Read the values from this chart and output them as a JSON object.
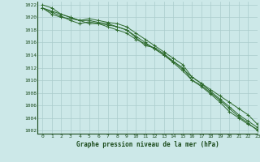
{
  "x": [
    0,
    1,
    2,
    3,
    4,
    5,
    6,
    7,
    8,
    9,
    10,
    11,
    12,
    13,
    14,
    15,
    16,
    17,
    18,
    19,
    20,
    21,
    22,
    23
  ],
  "series": [
    [
      1021.5,
      1020.8,
      1020.2,
      1019.5,
      1019.0,
      1019.3,
      1019.0,
      1018.5,
      1018.0,
      1017.5,
      1016.5,
      1015.8,
      1015.0,
      1014.0,
      1012.8,
      1011.5,
      1010.0,
      1009.0,
      1007.8,
      1006.5,
      1005.0,
      1004.0,
      1003.0,
      1002.2
    ],
    [
      1021.5,
      1021.0,
      1020.5,
      1020.0,
      1019.5,
      1019.8,
      1019.5,
      1019.2,
      1019.0,
      1018.5,
      1017.5,
      1016.5,
      1015.5,
      1014.5,
      1013.5,
      1012.5,
      1010.5,
      1009.5,
      1008.5,
      1007.5,
      1006.5,
      1005.5,
      1004.5,
      1003.0
    ],
    [
      1021.5,
      1020.5,
      1020.0,
      1019.8,
      1019.5,
      1019.5,
      1019.2,
      1019.0,
      1018.5,
      1018.0,
      1016.8,
      1015.5,
      1015.2,
      1014.2,
      1013.0,
      1011.8,
      1010.5,
      1009.5,
      1008.2,
      1007.0,
      1005.8,
      1004.5,
      1003.5,
      1002.5
    ],
    [
      1022.0,
      1021.5,
      1020.5,
      1020.0,
      1019.5,
      1019.0,
      1019.0,
      1018.8,
      1018.5,
      1018.0,
      1017.0,
      1016.0,
      1015.0,
      1014.0,
      1013.0,
      1012.0,
      1010.0,
      1009.2,
      1008.0,
      1006.8,
      1005.5,
      1004.2,
      1003.2,
      1002.0
    ]
  ],
  "line_color": "#2d6a2d",
  "marker": "+",
  "marker_size": 3,
  "linewidth": 0.7,
  "bg_color": "#cce8e8",
  "grid_color": "#aacccc",
  "xlabel": "Graphe pression niveau de la mer (hPa)",
  "xlabel_color": "#1a4a1a",
  "tick_color": "#1a4a1a",
  "ylabel_ticks": [
    1002,
    1004,
    1006,
    1008,
    1010,
    1012,
    1014,
    1016,
    1018,
    1020,
    1022
  ],
  "xlim": [
    -0.5,
    23
  ],
  "ylim": [
    1001.5,
    1022.5
  ]
}
